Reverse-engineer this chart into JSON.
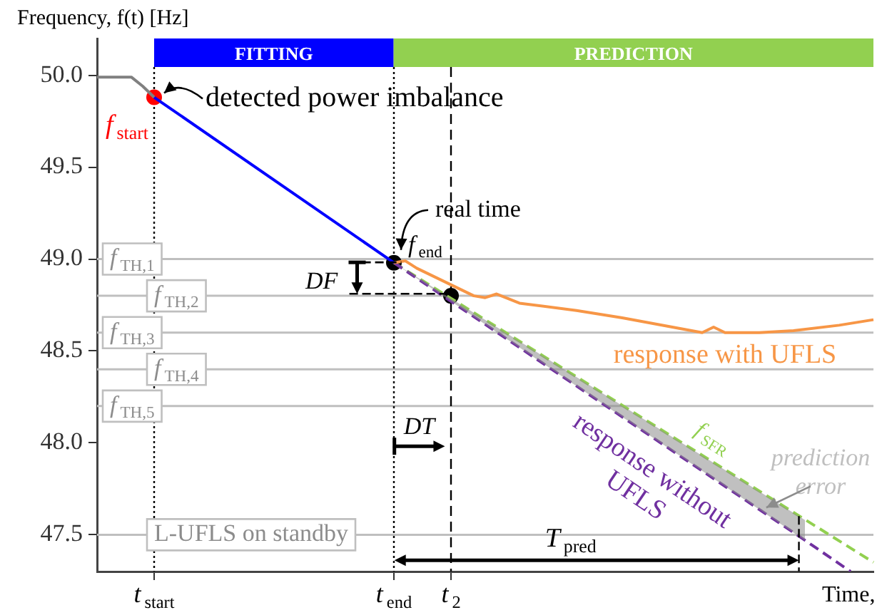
{
  "chart_data": {
    "type": "line",
    "xlabel": "Time,",
    "ylabel": "Frequency, f(t) [Hz]",
    "categories": [
      null,
      null,
      null,
      null,
      null,
      "t$_{start}$",
      null,
      null,
      null,
      null,
      null,
      null,
      null,
      null,
      null,
      null,
      null,
      null,
      null,
      null,
      null,
      null,
      null,
      null,
      null,
      null,
      "t$_{end}$",
      null,
      null,
      null,
      null,
      "t$_{2}$",
      null,
      null,
      null,
      null,
      null,
      null,
      null,
      null,
      null,
      null,
      null,
      null,
      null,
      null,
      null,
      null,
      null,
      null,
      null,
      null,
      null,
      null,
      null,
      null,
      null,
      null,
      null,
      null,
      null,
      null,
      null,
      null,
      null,
      null,
      null,
      null,
      null
    ],
    "ylim": [
      47.3,
      50.2
    ],
    "yticks": [
      {
        "value": 47.5,
        "label": "47.5"
      },
      {
        "value": 48,
        "label": "48.0"
      },
      {
        "value": 48.5,
        "label": "48.5"
      },
      {
        "value": 49,
        "label": "49.0"
      },
      {
        "value": 49.5,
        "label": "49.5"
      },
      {
        "value": 50,
        "label": "50.0"
      }
    ],
    "grid": false,
    "legend": false,
    "series": [
      {
        "type": "line",
        "color": "#808080",
        "line_style": "solid",
        "values": [
          49.99,
          null,
          null,
          49.99,
          49.94,
          49.88,
          null,
          null,
          null,
          null,
          null,
          null,
          null,
          null,
          null,
          null,
          null,
          null,
          null,
          null,
          null,
          null,
          null,
          null,
          null,
          null,
          null,
          null,
          null,
          null,
          null,
          null,
          null,
          null,
          null,
          null,
          null,
          null,
          null,
          null,
          null,
          null,
          null,
          null,
          null,
          null,
          null,
          null,
          null,
          null,
          null,
          null,
          null,
          null,
          null,
          null,
          null,
          null,
          null,
          null,
          null,
          null,
          null,
          null,
          null,
          null,
          null,
          null,
          null
        ]
      },
      {
        "type": "line",
        "color": "#0000ff",
        "line_style": "solid",
        "values": [
          null,
          null,
          null,
          null,
          null,
          49.88,
          null,
          null,
          null,
          null,
          null,
          null,
          null,
          null,
          null,
          null,
          null,
          null,
          null,
          null,
          null,
          null,
          null,
          null,
          null,
          null,
          48.98,
          null,
          null,
          null,
          null,
          null,
          null,
          null,
          null,
          null,
          null,
          null,
          null,
          null,
          null,
          null,
          null,
          null,
          null,
          null,
          null,
          null,
          null,
          null,
          null,
          null,
          null,
          null,
          null,
          null,
          null,
          null,
          null,
          null,
          null,
          null,
          null,
          null,
          null,
          null,
          null,
          null,
          null
        ]
      },
      {
        "type": "line",
        "name": "response with UFLS",
        "color": "#f79646",
        "line_style": "solid",
        "values": [
          null,
          null,
          null,
          null,
          null,
          null,
          null,
          null,
          null,
          null,
          null,
          null,
          null,
          null,
          null,
          null,
          null,
          null,
          null,
          null,
          null,
          null,
          null,
          null,
          null,
          null,
          48.98,
          48.99,
          48.95,
          48.92,
          null,
          48.86,
          null,
          48.8,
          48.79,
          48.81,
          null,
          48.76,
          null,
          null,
          null,
          null,
          48.72,
          null,
          null,
          null,
          48.68,
          null,
          null,
          null,
          null,
          null,
          null,
          48.6,
          48.63,
          48.6,
          null,
          null,
          48.6,
          null,
          null,
          48.61,
          null,
          null,
          null,
          48.64,
          null,
          null,
          48.67
        ]
      },
      {
        "type": "line",
        "name": "response without UFLS",
        "color": "#7030a0",
        "line_style": "dashed",
        "values": [
          null,
          null,
          null,
          null,
          null,
          null,
          null,
          null,
          null,
          null,
          null,
          null,
          null,
          null,
          null,
          null,
          null,
          null,
          null,
          null,
          null,
          null,
          null,
          null,
          null,
          null,
          48.98,
          null,
          null,
          null,
          null,
          null,
          null,
          null,
          null,
          null,
          null,
          null,
          null,
          null,
          null,
          null,
          null,
          null,
          null,
          null,
          null,
          null,
          null,
          null,
          null,
          null,
          null,
          null,
          null,
          null,
          null,
          null,
          null,
          null,
          null,
          null,
          47.47,
          null,
          null,
          null,
          47.3,
          null,
          null
        ],
        "lower": [
          null,
          null,
          null,
          null,
          null,
          null,
          null,
          null,
          null,
          null,
          null,
          null,
          null,
          null,
          null,
          null,
          null,
          null,
          null,
          null,
          null,
          null,
          null,
          null,
          null,
          null,
          48.98,
          null,
          null,
          null,
          null,
          null,
          null,
          null,
          null,
          null,
          null,
          null,
          null,
          null,
          null,
          null,
          null,
          null,
          null,
          null,
          null,
          null,
          null,
          null,
          null,
          null,
          null,
          null,
          null,
          null,
          null,
          null,
          null,
          null,
          null,
          null,
          47.47,
          null,
          null,
          null,
          null,
          null,
          null
        ],
        "upper": [
          null,
          null,
          null,
          null,
          null,
          null,
          null,
          null,
          null,
          null,
          null,
          null,
          null,
          null,
          null,
          null,
          null,
          null,
          null,
          null,
          null,
          null,
          null,
          null,
          null,
          null,
          48.98,
          null,
          null,
          null,
          null,
          null,
          null,
          null,
          null,
          null,
          null,
          null,
          null,
          null,
          null,
          null,
          null,
          null,
          null,
          null,
          null,
          null,
          null,
          null,
          null,
          null,
          null,
          null,
          null,
          null,
          null,
          null,
          null,
          null,
          null,
          null,
          47.58,
          null,
          null,
          null,
          null,
          null,
          null
        ]
      },
      {
        "type": "line",
        "name": "f$_{SFR}$",
        "color": "#92d050",
        "line_style": "dashed",
        "values": [
          null,
          null,
          null,
          null,
          null,
          null,
          null,
          null,
          null,
          null,
          null,
          null,
          null,
          null,
          null,
          null,
          null,
          null,
          null,
          null,
          null,
          null,
          null,
          null,
          null,
          null,
          48.98,
          null,
          null,
          null,
          null,
          null,
          null,
          null,
          null,
          null,
          null,
          null,
          null,
          null,
          null,
          null,
          null,
          null,
          null,
          null,
          null,
          null,
          null,
          null,
          null,
          null,
          null,
          null,
          null,
          null,
          null,
          null,
          null,
          null,
          null,
          null,
          null,
          null,
          null,
          null,
          null,
          null,
          47.35
        ]
      },
      {
        "type": "scatter",
        "marker": "circle",
        "color": "#ff0000",
        "values": [
          null,
          null,
          null,
          null,
          null,
          49.88,
          null,
          null,
          null,
          null,
          null,
          null,
          null,
          null,
          null,
          null,
          null,
          null,
          null,
          null,
          null,
          null,
          null,
          null,
          null,
          null,
          null,
          null,
          null,
          null,
          null,
          null,
          null,
          null,
          null,
          null,
          null,
          null,
          null,
          null,
          null,
          null,
          null,
          null,
          null,
          null,
          null,
          null,
          null,
          null,
          null,
          null,
          null,
          null,
          null,
          null,
          null,
          null,
          null,
          null,
          null,
          null,
          null,
          null,
          null,
          null,
          null,
          null,
          null
        ]
      },
      {
        "type": "scatter",
        "marker": "circle",
        "color": "#000000",
        "values": [
          null,
          null,
          null,
          null,
          null,
          null,
          null,
          null,
          null,
          null,
          null,
          null,
          null,
          null,
          null,
          null,
          null,
          null,
          null,
          null,
          null,
          null,
          null,
          null,
          null,
          null,
          48.98,
          null,
          null,
          null,
          null,
          null,
          null,
          null,
          null,
          null,
          null,
          null,
          null,
          null,
          null,
          null,
          null,
          null,
          null,
          null,
          null,
          null,
          null,
          null,
          null,
          null,
          null,
          null,
          null,
          null,
          null,
          null,
          null,
          null,
          null,
          null,
          null,
          null,
          null,
          null,
          null,
          null,
          null
        ]
      },
      {
        "type": "scatter",
        "marker": "circle",
        "color": "#000000",
        "values": [
          null,
          null,
          null,
          null,
          null,
          null,
          null,
          null,
          null,
          null,
          null,
          null,
          null,
          null,
          null,
          null,
          null,
          null,
          null,
          null,
          null,
          null,
          null,
          null,
          null,
          null,
          null,
          null,
          null,
          null,
          null,
          48.8,
          null,
          null,
          null,
          null,
          null,
          null,
          null,
          null,
          null,
          null,
          null,
          null,
          null,
          null,
          null,
          null,
          null,
          null,
          null,
          null,
          null,
          null,
          null,
          null,
          null,
          null,
          null,
          null,
          null,
          null,
          null,
          null,
          null,
          null,
          null,
          null,
          null
        ]
      }
    ],
    "ref_lines": [
      {
        "axis": "y",
        "value": 49,
        "label": "f$_{TH,1}$",
        "color": "#bfbfbf"
      },
      {
        "axis": "y",
        "value": 48.8,
        "label": "f$_{TH,2}$",
        "color": "#bfbfbf"
      },
      {
        "axis": "y",
        "value": 48.6,
        "label": "f$_{TH,3}$",
        "color": "#bfbfbf"
      },
      {
        "axis": "y",
        "value": 48.4,
        "label": "f$_{TH,4}$",
        "color": "#bfbfbf"
      },
      {
        "axis": "y",
        "value": 48.2,
        "label": "f$_{TH,5}$",
        "color": "#bfbfbf"
      },
      {
        "axis": "y",
        "value": 47.5,
        "label": "L-UFLS on standby",
        "color": "#bfbfbf"
      },
      {
        "axis": "x",
        "value": "t$_{start}$",
        "color": "#000000",
        "line_style": "dotted"
      },
      {
        "axis": "x",
        "value": "t$_{end}$",
        "color": "#000000",
        "line_style": "dotted"
      },
      {
        "axis": "x",
        "value": "t$_{2}$",
        "color": "#000000",
        "line_style": "dashed"
      }
    ],
    "annotations": [
      {
        "text": "detected power imbalance",
        "x": "t$_{start}$",
        "y": 49.88
      },
      {
        "text": "real time",
        "x": "t$_{end}$",
        "y": 48.98
      },
      "prediction error",
      {
        "text": "f$_{start}$",
        "x": "t$_{start}$",
        "y": 49.88
      },
      {
        "text": "f$_{end}$",
        "x": "t$_{end}$",
        "y": 48.98
      },
      "DF",
      "DT",
      "T$_{pred}$",
      "FITTING",
      "PREDICTION"
    ]
  }
}
